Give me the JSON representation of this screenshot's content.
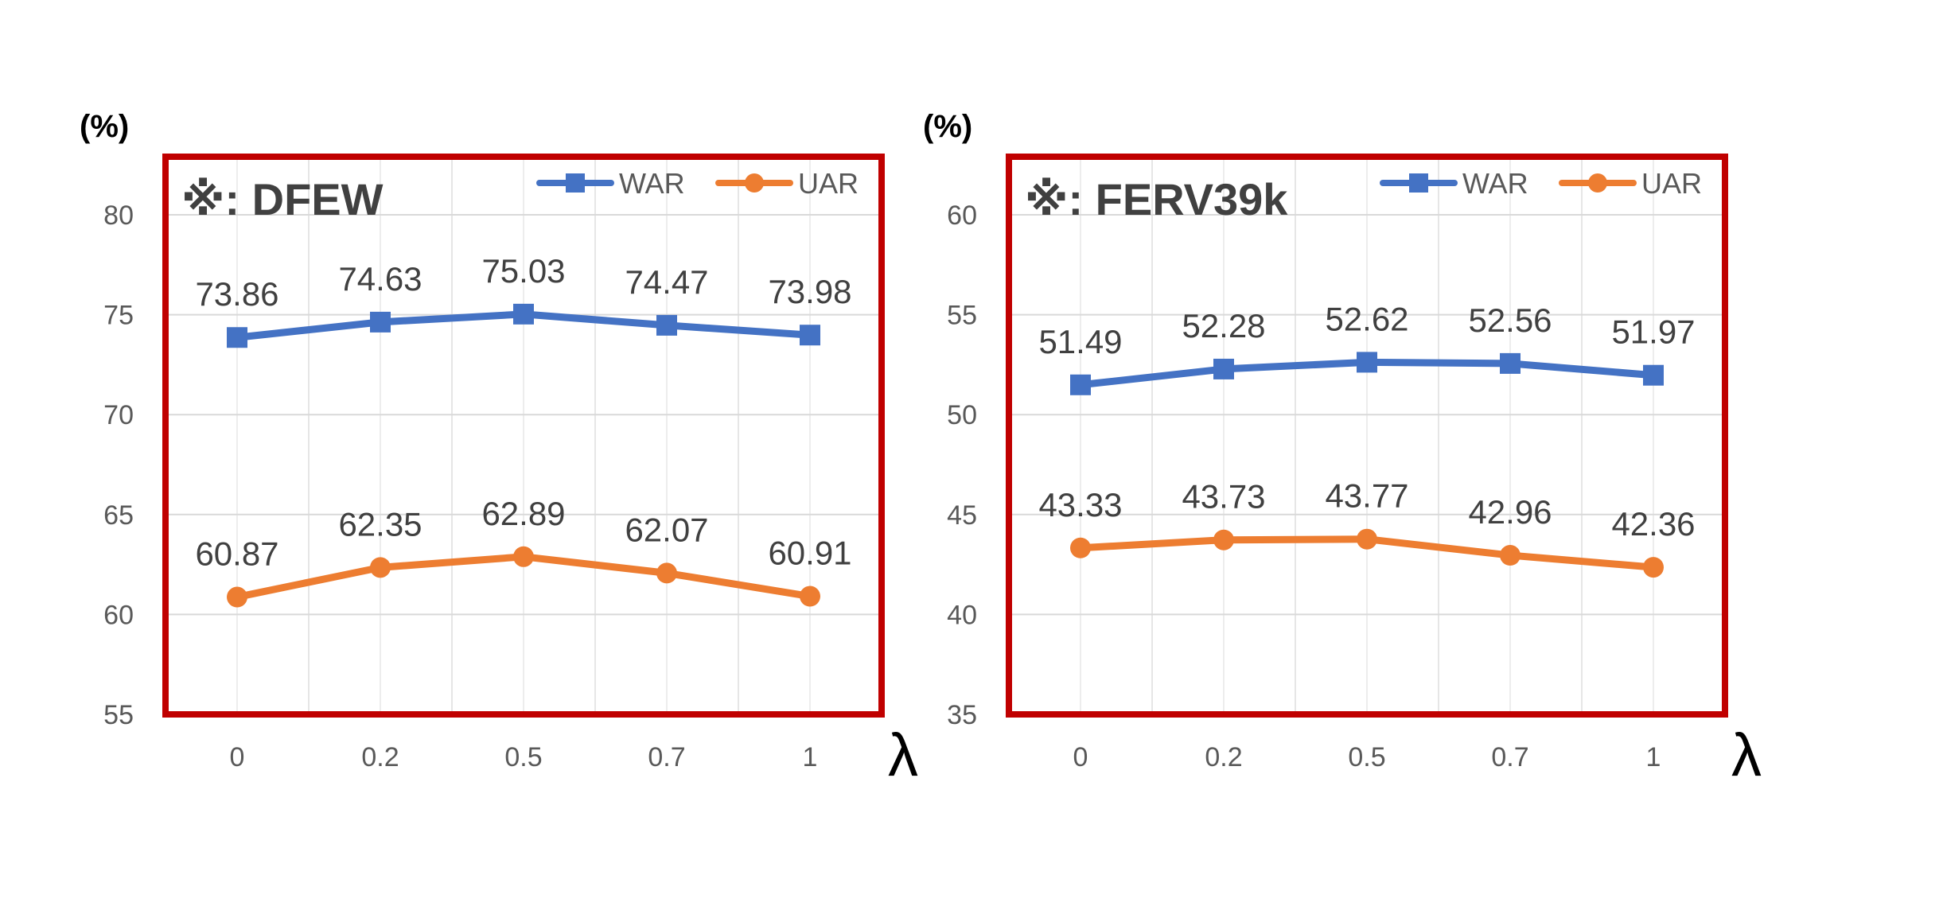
{
  "chart_data": [
    {
      "type": "line",
      "title": "※:  DFEW",
      "y_unit_label": "(%)",
      "xlabel": "λ",
      "categories": [
        "0",
        "0.2",
        "0.5",
        "0.7",
        "1"
      ],
      "ylim": [
        55,
        80
      ],
      "yticks": [
        55,
        60,
        65,
        70,
        75,
        80
      ],
      "grid": true,
      "legend_position": "top-right",
      "series": [
        {
          "name": "WAR",
          "color": "#4472C4",
          "marker": "square",
          "values": [
            73.86,
            74.63,
            75.03,
            74.47,
            73.98
          ]
        },
        {
          "name": "UAR",
          "color": "#ED7D31",
          "marker": "circle",
          "values": [
            60.87,
            62.35,
            62.89,
            62.07,
            60.91
          ]
        }
      ]
    },
    {
      "type": "line",
      "title": "※:  FERV39k",
      "y_unit_label": "(%)",
      "xlabel": "λ",
      "categories": [
        "0",
        "0.2",
        "0.5",
        "0.7",
        "1"
      ],
      "ylim": [
        35,
        60
      ],
      "yticks": [
        35,
        40,
        45,
        50,
        55,
        60
      ],
      "grid": true,
      "legend_position": "top-right",
      "series": [
        {
          "name": "WAR",
          "color": "#4472C4",
          "marker": "square",
          "values": [
            51.49,
            52.28,
            52.62,
            52.56,
            51.97
          ]
        },
        {
          "name": "UAR",
          "color": "#ED7D31",
          "marker": "circle",
          "values": [
            43.33,
            43.73,
            43.77,
            42.96,
            42.36
          ]
        }
      ]
    }
  ],
  "frame_color": "#C00000"
}
